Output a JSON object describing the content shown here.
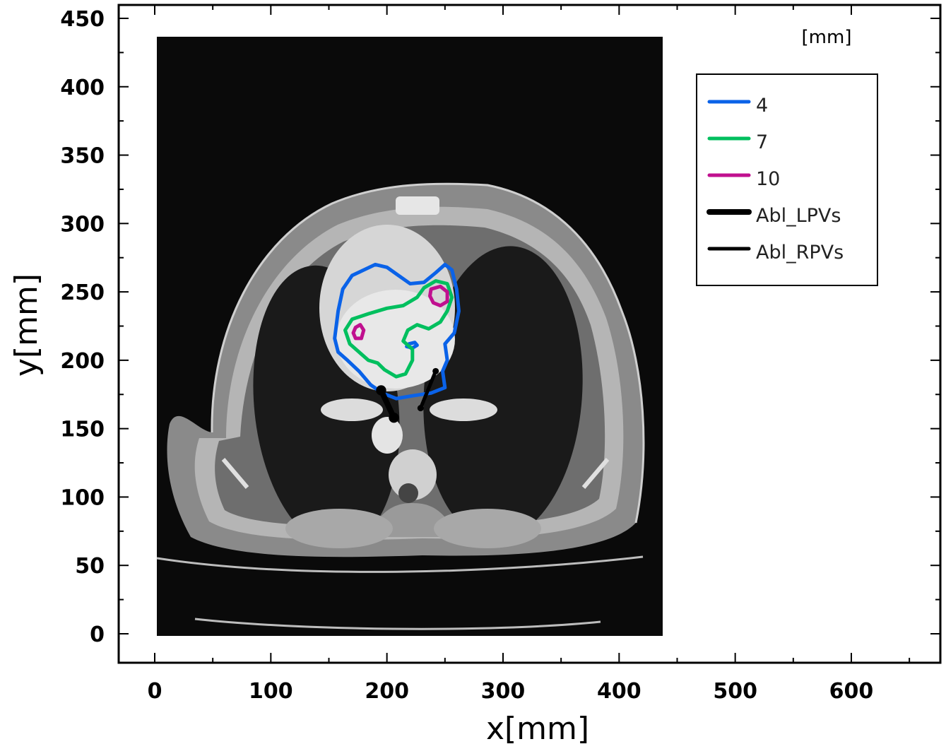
{
  "chart_data": {
    "type": "line",
    "xlabel": "x[mm]",
    "ylabel": "y[mm]",
    "units_label": "[mm]",
    "xlim": [
      -30,
      680
    ],
    "ylim": [
      -20,
      460
    ],
    "x_ticks": [
      0,
      100,
      200,
      300,
      400,
      500,
      600
    ],
    "y_ticks": [
      0,
      50,
      100,
      150,
      200,
      250,
      300,
      350,
      400,
      450
    ],
    "grid": false,
    "legend_position": "top-right",
    "background_image": {
      "description_free": true,
      "extent_x": [
        3,
        440
      ],
      "extent_y": [
        -2,
        436
      ]
    },
    "series": [
      {
        "name": "4",
        "color": "#0a62e8",
        "contours": [
          [
            [
              180,
              266
            ],
            [
              190,
              270
            ],
            [
              200,
              268
            ],
            [
              210,
              262
            ],
            [
              220,
              256
            ],
            [
              232,
              257
            ],
            [
              242,
              264
            ],
            [
              250,
              270
            ],
            [
              256,
              266
            ],
            [
              260,
              252
            ],
            [
              262,
              236
            ],
            [
              258,
              220
            ],
            [
              250,
              212
            ],
            [
              252,
              200
            ],
            [
              248,
              192
            ],
            [
              250,
              180
            ],
            [
              238,
              176
            ],
            [
              222,
              174
            ],
            [
              208,
              172
            ],
            [
              196,
              176
            ],
            [
              186,
              182
            ],
            [
              176,
              192
            ],
            [
              166,
              200
            ],
            [
              158,
              206
            ],
            [
              155,
              216
            ],
            [
              158,
              236
            ],
            [
              162,
              252
            ],
            [
              170,
              262
            ],
            [
              180,
              266
            ]
          ],
          [
            [
              219,
              212
            ],
            [
              224,
              213
            ],
            [
              226,
              211
            ],
            [
              222,
              209
            ],
            [
              217,
              210
            ],
            [
              219,
              212
            ]
          ]
        ]
      },
      {
        "name": "7",
        "color": "#00bf5e",
        "contours": [
          [
            [
              232,
              253
            ],
            [
              242,
              258
            ],
            [
              252,
              256
            ],
            [
              256,
              246
            ],
            [
              252,
              236
            ],
            [
              246,
              228
            ],
            [
              236,
              223
            ],
            [
              226,
              226
            ],
            [
              218,
              222
            ],
            [
              214,
              214
            ],
            [
              222,
              208
            ],
            [
              222,
              200
            ],
            [
              216,
              190
            ],
            [
              208,
              188
            ],
            [
              198,
              193
            ],
            [
              192,
              198
            ],
            [
              184,
              200
            ],
            [
              176,
              206
            ],
            [
              168,
              212
            ],
            [
              164,
              222
            ],
            [
              170,
              230
            ],
            [
              184,
              234
            ],
            [
              200,
              238
            ],
            [
              214,
              240
            ],
            [
              226,
              246
            ],
            [
              232,
              253
            ]
          ]
        ]
      },
      {
        "name": "10",
        "color": "#c0108f",
        "contours": [
          [
            [
              238,
              252
            ],
            [
              246,
              254
            ],
            [
              252,
              250
            ],
            [
              252,
              243
            ],
            [
              246,
              240
            ],
            [
              240,
              242
            ],
            [
              237,
              247
            ],
            [
              238,
              252
            ]
          ],
          [
            [
              173,
              224
            ],
            [
              177,
              226
            ],
            [
              180,
              222
            ],
            [
              178,
              216
            ],
            [
              173,
              216
            ],
            [
              171,
              220
            ],
            [
              173,
              224
            ]
          ]
        ]
      },
      {
        "name": "Abl_LPVs",
        "color": "#000000",
        "width": 8,
        "segments": [
          [
            [
              195,
              178
            ],
            [
              206,
              158
            ]
          ]
        ]
      },
      {
        "name": "Abl_RPVs",
        "color": "#000000",
        "width": 5,
        "segments": [
          [
            [
              229,
              165
            ],
            [
              242,
              192
            ]
          ]
        ]
      }
    ]
  }
}
